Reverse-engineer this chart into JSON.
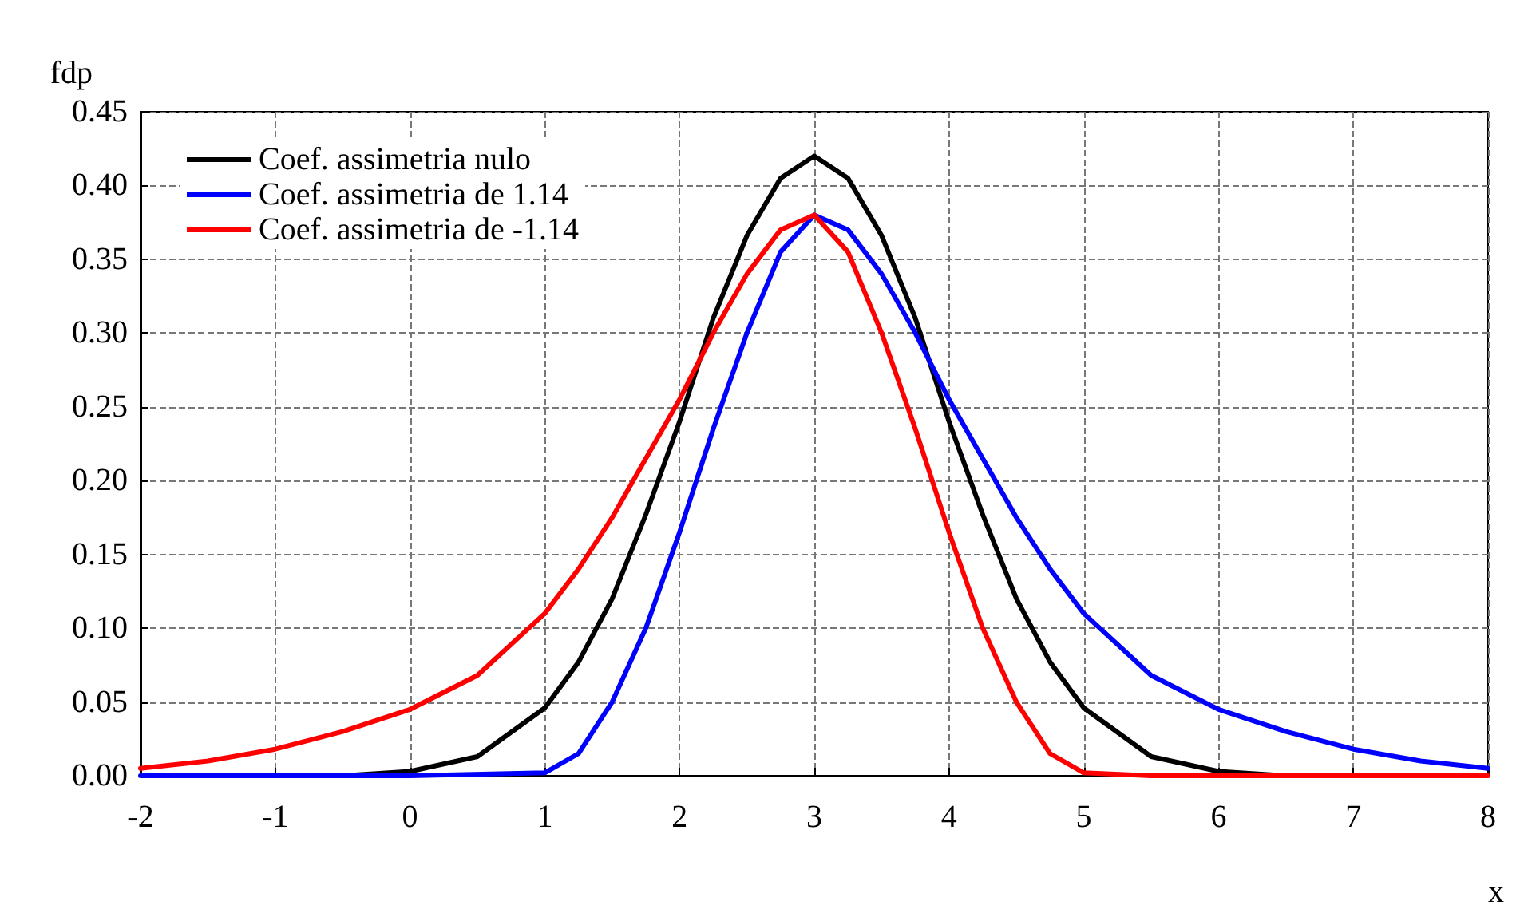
{
  "chart_data": {
    "type": "line",
    "xlabel": "x",
    "ylabel": "fdp",
    "xlim": [
      -2,
      8
    ],
    "xticks": [
      -2,
      -1,
      0,
      1,
      2,
      3,
      4,
      5,
      6,
      7,
      8
    ],
    "ylim": [
      0,
      0.45
    ],
    "yticks": [
      {
        "value": 0,
        "label": "0.00"
      },
      {
        "value": 0.05,
        "label": "0.05"
      },
      {
        "value": 0.1,
        "label": "0.10"
      },
      {
        "value": 0.15,
        "label": "0.15"
      },
      {
        "value": 0.2,
        "label": "0.20"
      },
      {
        "value": 0.25,
        "label": "0.25"
      },
      {
        "value": 0.3,
        "label": "0.30"
      },
      {
        "value": 0.35,
        "label": "0.35"
      },
      {
        "value": 0.4,
        "label": "0.40"
      },
      {
        "value": 0.45,
        "label": "0.45"
      }
    ],
    "grid": true,
    "legend": "top left",
    "marker": "none",
    "line_style": "solid",
    "series": [
      {
        "name": "Coef. assimetria nulo",
        "color": "#000000",
        "x": [
          -0.5,
          0,
          0.5,
          1,
          1.25,
          1.5,
          1.75,
          2,
          2.25,
          2.5,
          2.75,
          3,
          3.25,
          3.5,
          3.75,
          4,
          4.25,
          4.5,
          4.75,
          5,
          5.5,
          6,
          6.5
        ],
        "values": [
          0,
          0.003,
          0.013,
          0.046,
          0.077,
          0.12,
          0.177,
          0.24,
          0.31,
          0.366,
          0.405,
          0.42,
          0.405,
          0.366,
          0.31,
          0.24,
          0.177,
          0.12,
          0.077,
          0.046,
          0.013,
          0.003,
          0
        ]
      },
      {
        "name": "Coef. assimetria de 1.14",
        "color": "#0000ff",
        "x": [
          -2,
          0,
          1,
          1.25,
          1.5,
          1.75,
          2,
          2.25,
          2.5,
          2.75,
          3,
          3.25,
          3.5,
          3.75,
          4,
          4.25,
          4.5,
          4.75,
          5,
          5.5,
          6,
          6.5,
          7,
          7.5,
          8
        ],
        "values": [
          0,
          0,
          0.002,
          0.015,
          0.05,
          0.1,
          0.165,
          0.235,
          0.3,
          0.355,
          0.38,
          0.37,
          0.34,
          0.3,
          0.255,
          0.215,
          0.175,
          0.14,
          0.11,
          0.068,
          0.045,
          0.03,
          0.018,
          0.01,
          0.005
        ]
      },
      {
        "name": "Coef. assimetria de -1.14",
        "color": "#ff0000",
        "x": [
          -2,
          -1.5,
          -1,
          -0.5,
          0,
          0.5,
          1,
          1.25,
          1.5,
          1.75,
          2,
          2.25,
          2.5,
          2.75,
          3,
          3.25,
          3.5,
          3.75,
          4,
          4.25,
          4.5,
          4.75,
          5,
          5.5,
          8
        ],
        "values": [
          0.005,
          0.01,
          0.018,
          0.03,
          0.045,
          0.068,
          0.11,
          0.14,
          0.175,
          0.215,
          0.255,
          0.3,
          0.34,
          0.37,
          0.38,
          0.355,
          0.3,
          0.235,
          0.165,
          0.1,
          0.05,
          0.015,
          0.002,
          0,
          0
        ]
      }
    ]
  }
}
